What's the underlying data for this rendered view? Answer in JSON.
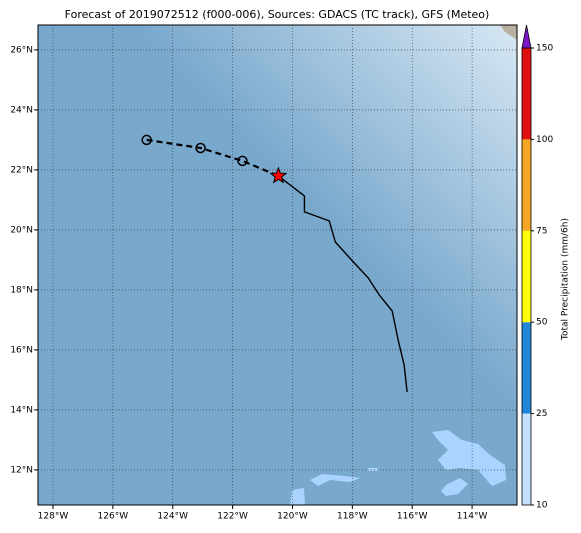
{
  "chart_data": {
    "type": "track-map",
    "title": "Forecast of 2019072512 (f000-006), Sources: GDACS (TC track), GFS (Meteo)",
    "xlim": [
      -128.5,
      -112.5
    ],
    "ylim": [
      10.83,
      26.83
    ],
    "xticks": [
      {
        "value": -128,
        "label": "128°W"
      },
      {
        "value": -126,
        "label": "126°W"
      },
      {
        "value": -124,
        "label": "124°W"
      },
      {
        "value": -122,
        "label": "122°W"
      },
      {
        "value": -120,
        "label": "120°W"
      },
      {
        "value": -118,
        "label": "118°W"
      },
      {
        "value": -116,
        "label": "116°W"
      },
      {
        "value": -114,
        "label": "114°W"
      }
    ],
    "yticks": [
      {
        "value": 12,
        "label": "12°N"
      },
      {
        "value": 14,
        "label": "14°N"
      },
      {
        "value": 16,
        "label": "16°N"
      },
      {
        "value": 18,
        "label": "18°N"
      },
      {
        "value": 20,
        "label": "20°N"
      },
      {
        "value": 22,
        "label": "22°N"
      },
      {
        "value": 24,
        "label": "24°N"
      },
      {
        "value": 26,
        "label": "26°N"
      }
    ],
    "grid": true,
    "series": [
      {
        "color": "#000000",
        "x": [
          -124.87,
          -123.07,
          -121.67
        ],
        "values": [
          23.0,
          22.73,
          22.3
        ]
      },
      {
        "color": "#ff0000",
        "x": [
          -120.47
        ],
        "values": [
          21.8
        ]
      },
      {
        "color": "#000000",
        "x": [
          -120.47,
          -119.6,
          -119.6,
          -118.77,
          -118.57,
          -118.03,
          -117.47,
          -117.1,
          -116.67,
          -116.47,
          -116.27,
          -116.17
        ],
        "values": [
          21.8,
          21.13,
          20.6,
          20.3,
          19.6,
          19.0,
          18.4,
          17.83,
          17.3,
          16.33,
          15.5,
          14.6
        ]
      }
    ],
    "colorbar": {
      "label": "Total Precipitation (mm/6h)",
      "ticks": [
        10,
        25,
        50,
        75,
        100,
        150
      ],
      "colors": [
        "#c4e2ff",
        "#1f86d8",
        "#ffff00",
        "#f5a623",
        "#e01010"
      ],
      "extend_color": "#7b16c9"
    }
  }
}
